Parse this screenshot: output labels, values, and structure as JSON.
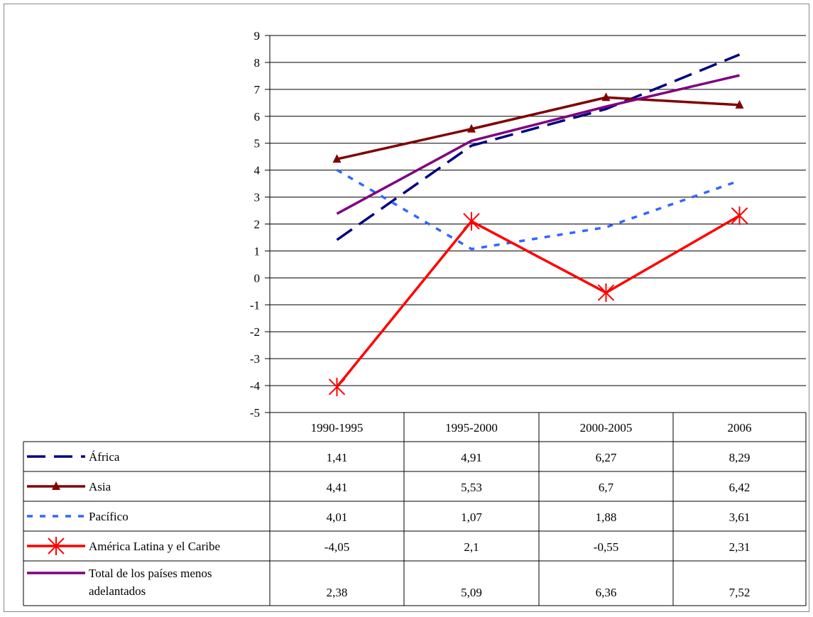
{
  "chart_data": {
    "type": "line",
    "categories": [
      "1990-1995",
      "1995-2000",
      "2000-2005",
      "2006"
    ],
    "y_ticks": [
      "9",
      "8",
      "7",
      "6",
      "5",
      "4",
      "3",
      "2",
      "1",
      "0",
      "-1",
      "-2",
      "-3",
      "-4",
      "-5"
    ],
    "ylim": [
      -5,
      9
    ],
    "grid": true,
    "legend_placement": "data-table-below",
    "series": [
      {
        "name": "África",
        "values": [
          1.41,
          4.91,
          6.27,
          8.29
        ],
        "labels": [
          "1,41",
          "4,91",
          "6,27",
          "8,29"
        ],
        "color": "#000080",
        "dash": "long-dash",
        "marker": "none"
      },
      {
        "name": "Asia",
        "values": [
          4.41,
          5.53,
          6.7,
          6.42
        ],
        "labels": [
          "4,41",
          "5,53",
          "6,7",
          "6,42"
        ],
        "color": "#800000",
        "dash": "solid",
        "marker": "triangle"
      },
      {
        "name": "Pacífico",
        "values": [
          4.01,
          1.07,
          1.88,
          3.61
        ],
        "labels": [
          "4,01",
          "1,07",
          "1,88",
          "3,61"
        ],
        "color": "#3366ff",
        "dash": "dotted",
        "marker": "none"
      },
      {
        "name": "América Latina y el Caribe",
        "values": [
          -4.05,
          2.1,
          -0.55,
          2.31
        ],
        "labels": [
          "-4,05",
          "2,1",
          "-0,55",
          "2,31"
        ],
        "color": "#ff0000",
        "dash": "solid",
        "marker": "star"
      },
      {
        "name": [
          "Total de los países menos",
          "adelantados"
        ],
        "values": [
          2.38,
          5.09,
          6.36,
          7.52
        ],
        "labels": [
          "2,38",
          "5,09",
          "6,36",
          "7,52"
        ],
        "color": "#800080",
        "dash": "solid",
        "marker": "none"
      }
    ]
  }
}
